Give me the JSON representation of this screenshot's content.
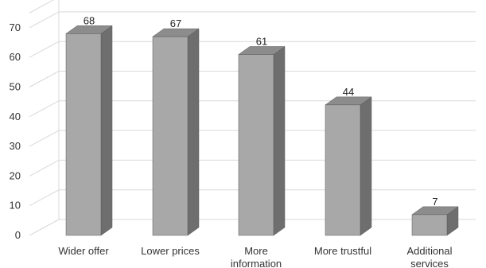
{
  "chart_data": {
    "type": "bar",
    "title": "",
    "xlabel": "",
    "ylabel": "",
    "categories": [
      "Wider offer",
      "Lower prices",
      "More information",
      "More trustful",
      "Additional services"
    ],
    "category_lines": [
      [
        "Wider offer"
      ],
      [
        "Lower prices"
      ],
      [
        "More",
        "information"
      ],
      [
        "More trustful"
      ],
      [
        "Additional",
        "services"
      ]
    ],
    "values": [
      68,
      67,
      61,
      44,
      7
    ],
    "data_labels": [
      "68",
      "67",
      "61",
      "44",
      "7"
    ],
    "yticks": [
      0,
      10,
      20,
      30,
      40,
      50,
      60,
      70
    ],
    "ylim": [
      0,
      75
    ],
    "grid": true,
    "legend": "none",
    "style": "3d-column",
    "colors": {
      "front": "#a8a8a8",
      "side": "#6e6e6e",
      "top": "#8c8c8c",
      "grid": "#d9d9d9",
      "bar_edge": "#5a5a5a"
    }
  }
}
